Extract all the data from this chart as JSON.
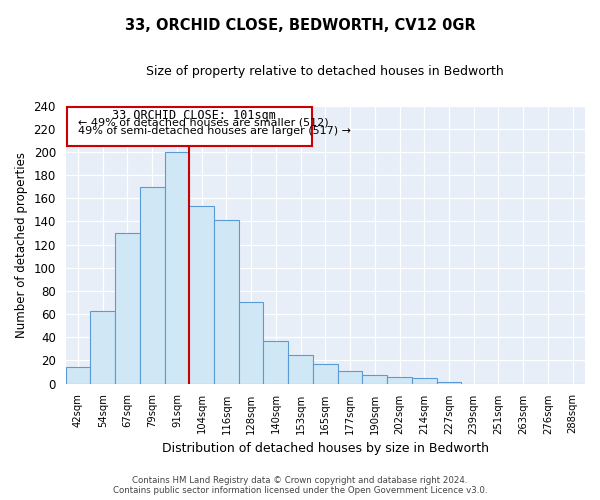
{
  "title": "33, ORCHID CLOSE, BEDWORTH, CV12 0GR",
  "subtitle": "Size of property relative to detached houses in Bedworth",
  "xlabel": "Distribution of detached houses by size in Bedworth",
  "ylabel": "Number of detached properties",
  "bar_labels": [
    "42sqm",
    "54sqm",
    "67sqm",
    "79sqm",
    "91sqm",
    "104sqm",
    "116sqm",
    "128sqm",
    "140sqm",
    "153sqm",
    "165sqm",
    "177sqm",
    "190sqm",
    "202sqm",
    "214sqm",
    "227sqm",
    "239sqm",
    "251sqm",
    "263sqm",
    "276sqm",
    "288sqm"
  ],
  "bar_values": [
    14,
    63,
    130,
    170,
    200,
    153,
    141,
    70,
    37,
    25,
    17,
    11,
    7,
    6,
    5,
    1,
    0,
    0,
    0,
    0,
    0
  ],
  "bar_color": "#d0e8f5",
  "bar_edge_color": "#5b9bd5",
  "ylim": [
    0,
    240
  ],
  "yticks": [
    0,
    20,
    40,
    60,
    80,
    100,
    120,
    140,
    160,
    180,
    200,
    220,
    240
  ],
  "vline_x_index": 4,
  "vline_color": "#cc0000",
  "annotation_box_title": "33 ORCHID CLOSE: 101sqm",
  "annotation_line1": "← 49% of detached houses are smaller (512)",
  "annotation_line2": "49% of semi-detached houses are larger (517) →",
  "footer1": "Contains HM Land Registry data © Crown copyright and database right 2024.",
  "footer2": "Contains public sector information licensed under the Open Government Licence v3.0.",
  "background_color": "#e8eef8",
  "grid_color": "#ffffff"
}
